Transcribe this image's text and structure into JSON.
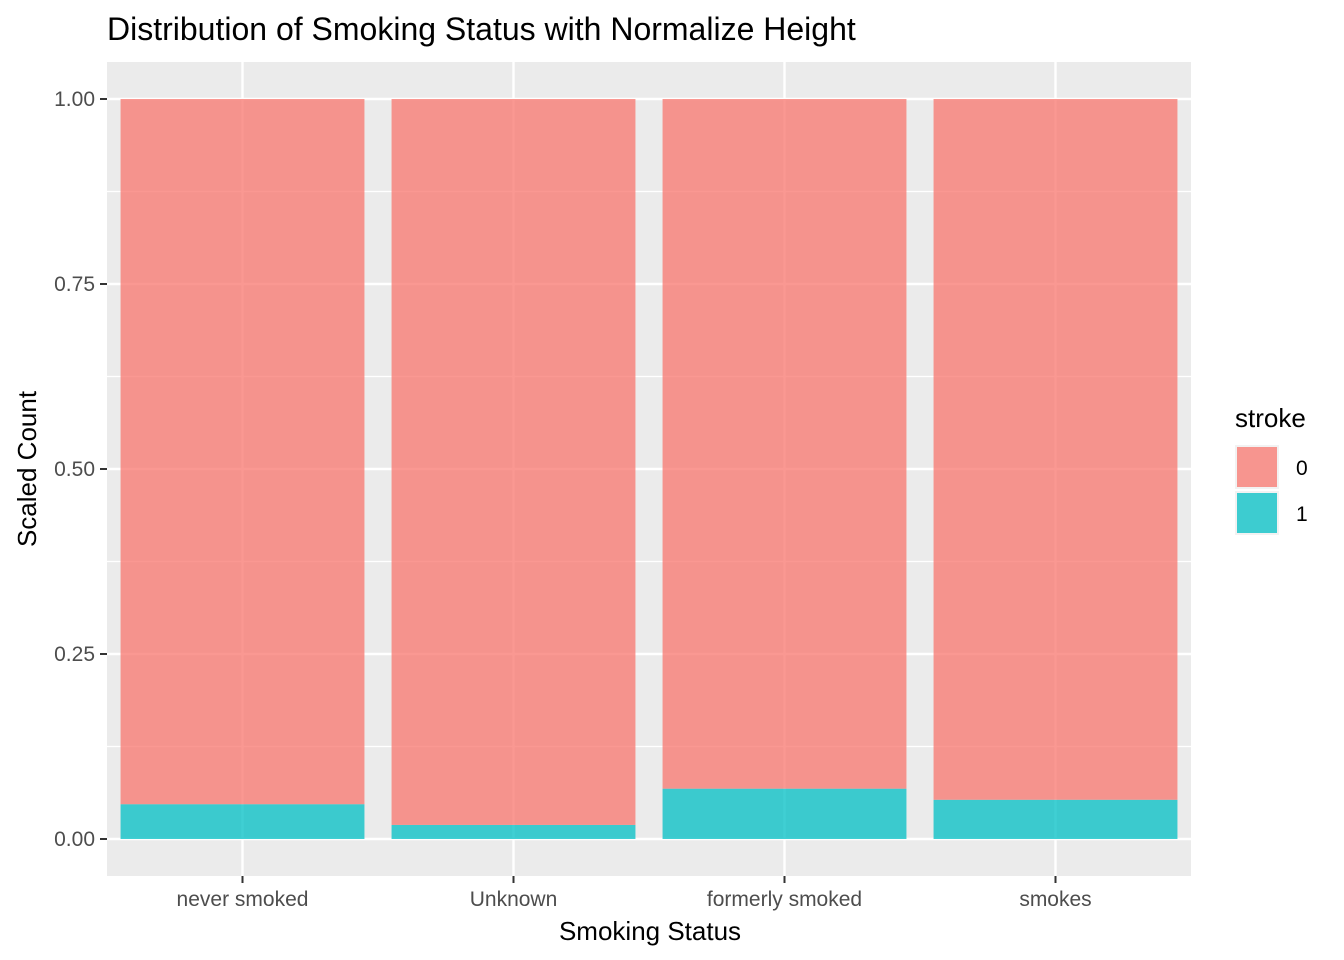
{
  "chart_data": {
    "type": "bar",
    "stacked": true,
    "normalized": true,
    "title": "Distribution of Smoking Status with Normalize Height",
    "xlabel": "Smoking Status",
    "ylabel": "Scaled Count",
    "categories": [
      "never smoked",
      "Unknown",
      "formerly smoked",
      "smokes"
    ],
    "series": [
      {
        "name": "0",
        "values": [
          0.953,
          0.981,
          0.932,
          0.947
        ],
        "color": "#F8766D"
      },
      {
        "name": "1",
        "values": [
          0.047,
          0.019,
          0.068,
          0.053
        ],
        "color": "#00BFC4"
      }
    ],
    "ylim": [
      -0.05,
      1.05
    ],
    "yticks": [
      0.0,
      0.25,
      0.5,
      0.75,
      1.0
    ],
    "ytick_labels": [
      "0.00",
      "0.25",
      "0.50",
      "0.75",
      "1.00"
    ],
    "legend": {
      "title": "stroke",
      "position": "right",
      "labels": [
        "0",
        "1"
      ]
    },
    "grid": true,
    "panel_background": "#EBEBEB"
  }
}
